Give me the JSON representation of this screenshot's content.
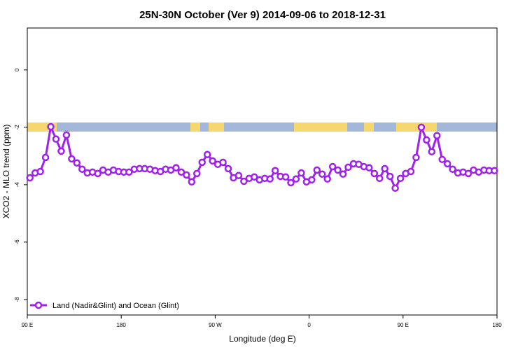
{
  "chart_data": {
    "type": "line",
    "title": "25N-30N October (Ver 9)   2014-09-06 to 2018-12-31",
    "xlabel": "Longitude (deg E)",
    "ylabel": "XCO2 - MLO trend (ppm)",
    "xlim": [
      90,
      540
    ],
    "ylim": [
      -8.54,
      1.46
    ],
    "xticks": [
      {
        "value": 90,
        "label": "90 E"
      },
      180,
      {
        "value": 270,
        "label": "90 W"
      },
      {
        "value": 360,
        "label": "0"
      },
      {
        "value": 450,
        "label": "90 E"
      },
      {
        "value": 540,
        "label": "180"
      }
    ],
    "yticks": [
      0,
      -2,
      -4,
      -6,
      -8
    ],
    "grid": false,
    "legend": "bottom-left",
    "x": [
      92.5,
      97.5,
      102.5,
      107.5,
      112.5,
      117.5,
      122.5,
      127.5,
      132.5,
      137.5,
      142.5,
      147.5,
      152.5,
      157.5,
      162.5,
      167.5,
      172.5,
      177.5,
      182.5,
      187.5,
      192.5,
      197.5,
      202.5,
      207.5,
      212.5,
      217.5,
      222.5,
      227.5,
      232.5,
      237.5,
      242.5,
      247.5,
      252.5,
      257.5,
      262.5,
      267.5,
      272.5,
      277.5,
      282.5,
      287.5,
      292.5,
      297.5,
      302.5,
      307.5,
      312.5,
      317.5,
      322.5,
      327.5,
      332.5,
      337.5,
      342.5,
      347.5,
      352.5,
      357.5,
      362.5,
      367.5,
      372.5,
      377.5,
      382.5,
      387.5,
      392.5,
      397.5,
      402.5,
      407.5,
      412.5,
      417.5,
      422.5,
      427.5,
      432.5,
      437.5,
      442.5,
      447.5,
      452.5,
      457.5,
      462.5,
      467.5,
      472.5,
      477.5,
      482.5,
      487.5,
      492.5,
      497.5,
      502.5,
      507.5,
      512.5,
      517.5,
      522.5,
      527.5,
      532.5,
      537.5
    ],
    "series": [
      {
        "name": "Land (Nadir&Glint) and Ocean (Glint)",
        "color": "#a020f0",
        "values": [
          -3.76,
          -3.59,
          -3.54,
          -3.05,
          -1.98,
          -2.41,
          -2.83,
          -2.27,
          -3.1,
          -3.24,
          -3.46,
          -3.59,
          -3.56,
          -3.61,
          -3.49,
          -3.56,
          -3.49,
          -3.54,
          -3.56,
          -3.56,
          -3.46,
          -3.44,
          -3.44,
          -3.46,
          -3.51,
          -3.54,
          -3.46,
          -3.49,
          -3.41,
          -3.56,
          -3.66,
          -3.9,
          -3.61,
          -3.22,
          -2.95,
          -3.17,
          -3.29,
          -3.22,
          -3.44,
          -3.76,
          -3.68,
          -3.88,
          -3.78,
          -3.73,
          -3.83,
          -3.78,
          -3.8,
          -3.51,
          -3.71,
          -3.73,
          -3.93,
          -3.8,
          -3.59,
          -3.9,
          -3.83,
          -3.49,
          -3.63,
          -3.8,
          -3.37,
          -3.49,
          -3.63,
          -3.39,
          -3.27,
          -3.29,
          -3.37,
          -3.41,
          -3.61,
          -3.78,
          -3.44,
          -3.71,
          -4.12,
          -3.78,
          -3.61,
          -3.54,
          -3.05,
          -2.0,
          -2.44,
          -2.85,
          -2.29,
          -3.12,
          -3.27,
          -3.46,
          -3.59,
          -3.56,
          -3.61,
          -3.49,
          -3.56,
          -3.49,
          -3.51,
          -3.51
        ]
      }
    ]
  }
}
